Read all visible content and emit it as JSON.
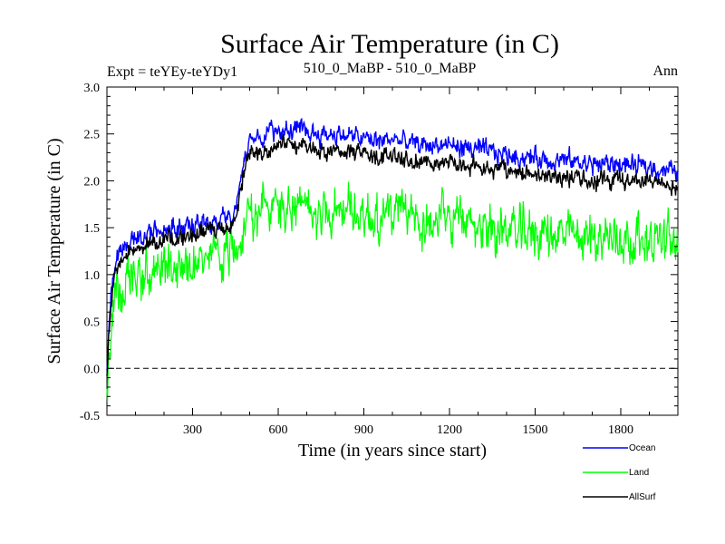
{
  "header": {
    "expt": "Expt = teYEy-teYDy1",
    "comparison": "510_0_MaBP - 510_0_MaBP",
    "season": "Ann"
  },
  "chart_data": {
    "type": "line",
    "title": "Surface Air Temperature (in C)",
    "xlabel": "Time (in years since start)",
    "ylabel": "Surface Air Temperature (in C)",
    "xlim": [
      0,
      2000
    ],
    "ylim": [
      -0.5,
      3.0
    ],
    "xticks": [
      300,
      600,
      900,
      1200,
      1500,
      1800
    ],
    "yticks": [
      -0.5,
      0.0,
      0.5,
      1.0,
      1.5,
      2.0,
      2.5,
      3.0
    ],
    "ytick_labels": [
      "-0.5",
      "0.0",
      "0.5",
      "1.0",
      "1.5",
      "2.0",
      "2.5",
      "3.0"
    ],
    "reference_line": {
      "y": 0.0,
      "style": "dashed"
    },
    "legend_position": "bottom-right",
    "series": [
      {
        "name": "Ocean",
        "color": "#0000ff",
        "x": [
          0,
          10,
          20,
          30,
          50,
          100,
          150,
          200,
          250,
          300,
          350,
          400,
          440,
          460,
          480,
          500,
          550,
          600,
          650,
          700,
          750,
          800,
          850,
          900,
          950,
          1000,
          1050,
          1100,
          1150,
          1200,
          1250,
          1300,
          1350,
          1400,
          1450,
          1500,
          1550,
          1600,
          1650,
          1700,
          1750,
          1800,
          1850,
          1900,
          1950,
          2000
        ],
        "values": [
          0.0,
          0.6,
          0.95,
          1.15,
          1.3,
          1.38,
          1.45,
          1.48,
          1.5,
          1.52,
          1.56,
          1.58,
          1.6,
          1.85,
          2.25,
          2.45,
          2.5,
          2.55,
          2.55,
          2.52,
          2.5,
          2.5,
          2.48,
          2.45,
          2.42,
          2.45,
          2.4,
          2.38,
          2.38,
          2.38,
          2.35,
          2.33,
          2.3,
          2.28,
          2.25,
          2.25,
          2.22,
          2.22,
          2.2,
          2.18,
          2.18,
          2.18,
          2.15,
          2.15,
          2.12,
          2.1
        ]
      },
      {
        "name": "Land",
        "color": "#00ff00",
        "x": [
          0,
          10,
          20,
          30,
          50,
          100,
          150,
          200,
          250,
          300,
          350,
          400,
          440,
          460,
          480,
          500,
          550,
          600,
          650,
          700,
          750,
          800,
          850,
          900,
          950,
          1000,
          1050,
          1100,
          1150,
          1200,
          1250,
          1300,
          1350,
          1400,
          1450,
          1500,
          1550,
          1600,
          1650,
          1700,
          1750,
          1800,
          1850,
          1900,
          1950,
          2000
        ],
        "values": [
          -0.3,
          0.2,
          0.55,
          0.75,
          0.85,
          0.95,
          1.0,
          1.05,
          1.1,
          1.12,
          1.15,
          1.2,
          1.25,
          1.4,
          1.58,
          1.65,
          1.7,
          1.72,
          1.7,
          1.68,
          1.7,
          1.68,
          1.66,
          1.65,
          1.62,
          1.65,
          1.6,
          1.58,
          1.58,
          1.58,
          1.55,
          1.52,
          1.5,
          1.48,
          1.45,
          1.45,
          1.43,
          1.42,
          1.4,
          1.4,
          1.4,
          1.4,
          1.38,
          1.38,
          1.36,
          1.35
        ]
      },
      {
        "name": "AllSurf",
        "color": "#000000",
        "x": [
          0,
          10,
          20,
          30,
          50,
          100,
          150,
          200,
          250,
          300,
          350,
          400,
          440,
          460,
          480,
          500,
          550,
          600,
          650,
          700,
          750,
          800,
          850,
          900,
          950,
          1000,
          1050,
          1100,
          1150,
          1200,
          1250,
          1300,
          1350,
          1400,
          1450,
          1500,
          1550,
          1600,
          1650,
          1700,
          1750,
          1800,
          1850,
          1900,
          1950,
          2000
        ],
        "values": [
          -0.1,
          0.5,
          0.85,
          1.05,
          1.2,
          1.28,
          1.35,
          1.38,
          1.4,
          1.42,
          1.45,
          1.48,
          1.5,
          1.72,
          2.1,
          2.3,
          2.35,
          2.38,
          2.38,
          2.35,
          2.33,
          2.33,
          2.3,
          2.28,
          2.25,
          2.28,
          2.23,
          2.2,
          2.2,
          2.2,
          2.17,
          2.15,
          2.12,
          2.1,
          2.08,
          2.08,
          2.05,
          2.05,
          2.02,
          2.0,
          2.0,
          2.0,
          1.98,
          1.98,
          1.96,
          1.94
        ]
      }
    ]
  }
}
